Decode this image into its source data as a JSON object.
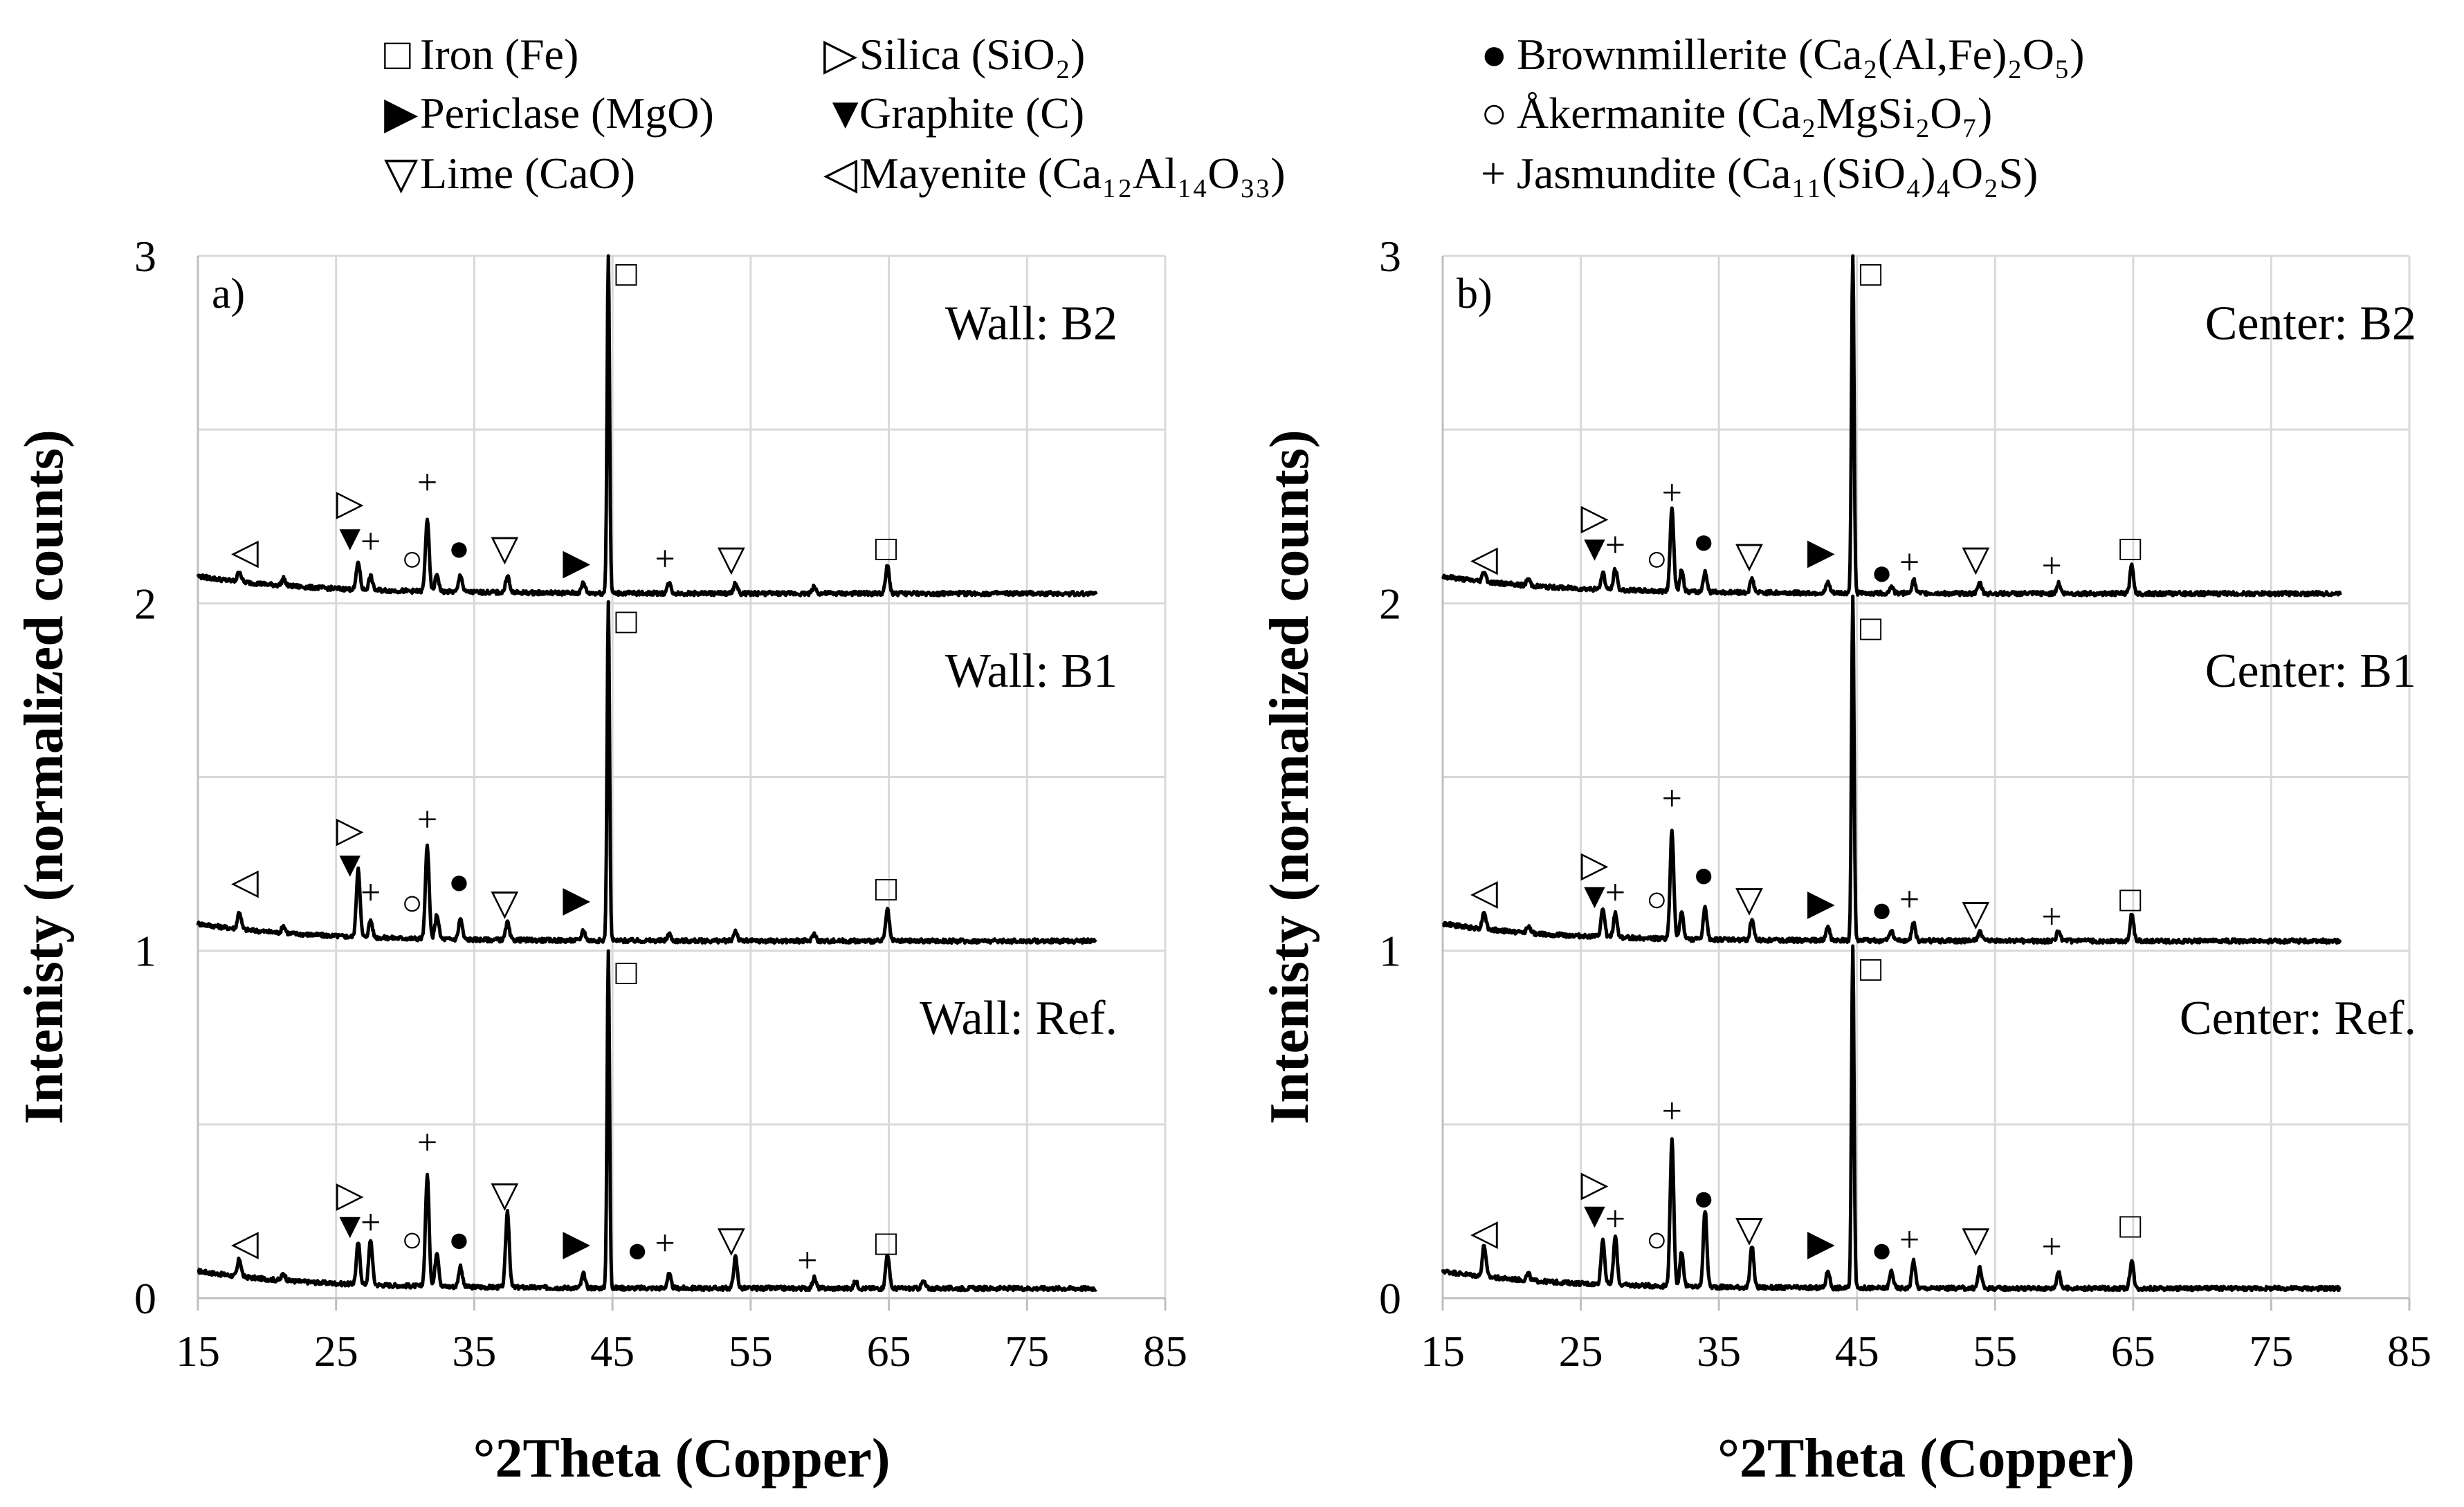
{
  "legend": {
    "items": [
      {
        "symbol": "□",
        "text": "Iron (Fe)"
      },
      {
        "symbol": "▶",
        "text": "Periclase (MgO)"
      },
      {
        "symbol": "▽",
        "text": "Lime (CaO)"
      },
      {
        "symbol": "▷",
        "text": "Silica (SiO₂)"
      },
      {
        "symbol": "▼",
        "text": "Graphite (C)"
      },
      {
        "symbol": "◁",
        "text": "Mayenite (Ca₁₂Al₁₄O₃₃)"
      },
      {
        "symbol": "●",
        "text": "Brownmillerite (Ca₂(Al,Fe)₂O₅)"
      },
      {
        "symbol": "○",
        "text": "Åkermanite (Ca₂MgSi₂O₇)"
      },
      {
        "symbol": "+",
        "text": "Jasmundite (Ca₁₁(SiO₄)₄O₂S)"
      }
    ]
  },
  "chart_data": [
    {
      "type": "line",
      "panel_label": "a)",
      "xlabel": "°2Theta (Copper)",
      "ylabel": "Intenisty (normalized counts)",
      "xlim": [
        15,
        85
      ],
      "ylim": [
        0,
        3
      ],
      "xticks": [
        15,
        25,
        35,
        45,
        55,
        65,
        75,
        85
      ],
      "yticks": [
        0,
        1,
        2,
        3
      ],
      "series": [
        {
          "name": "Wall: Ref.",
          "offset": 0,
          "peaks": [
            [
              18.0,
              0.05
            ],
            [
              21.2,
              0.02
            ],
            [
              26.6,
              0.12
            ],
            [
              27.5,
              0.13
            ],
            [
              31.6,
              0.32
            ],
            [
              32.3,
              0.1
            ],
            [
              34.0,
              0.06
            ],
            [
              37.4,
              0.22
            ],
            [
              42.9,
              0.04
            ],
            [
              44.7,
              0.97
            ],
            [
              49.1,
              0.04
            ],
            [
              53.9,
              0.09
            ],
            [
              59.6,
              0.03
            ],
            [
              62.6,
              0.02
            ],
            [
              64.9,
              0.1
            ],
            [
              67.5,
              0.02
            ]
          ],
          "markers": [
            {
              "symbol": "◁",
              "x": 18.4,
              "y": 0.16
            },
            {
              "symbol": "▷",
              "x": 26.0,
              "y": 0.3
            },
            {
              "symbol": "▼",
              "x": 26.0,
              "y": 0.21
            },
            {
              "symbol": "+",
              "x": 27.5,
              "y": 0.22
            },
            {
              "symbol": "○",
              "x": 30.5,
              "y": 0.17
            },
            {
              "symbol": "+",
              "x": 31.6,
              "y": 0.45
            },
            {
              "symbol": "●",
              "x": 33.9,
              "y": 0.17
            },
            {
              "symbol": "▽",
              "x": 37.2,
              "y": 0.3
            },
            {
              "symbol": "▶",
              "x": 42.4,
              "y": 0.16
            },
            {
              "symbol": "□",
              "x": 46.0,
              "y": 0.94
            },
            {
              "symbol": "●",
              "x": 46.8,
              "y": 0.14
            },
            {
              "symbol": "+",
              "x": 48.8,
              "y": 0.16
            },
            {
              "symbol": "▽",
              "x": 53.6,
              "y": 0.17
            },
            {
              "symbol": "+",
              "x": 59.1,
              "y": 0.11
            },
            {
              "symbol": "□",
              "x": 64.8,
              "y": 0.16
            }
          ]
        },
        {
          "name": "Wall: B1",
          "offset": 1,
          "peaks": [
            [
              18.0,
              0.05
            ],
            [
              21.2,
              0.02
            ],
            [
              26.6,
              0.2
            ],
            [
              27.5,
              0.05
            ],
            [
              31.6,
              0.27
            ],
            [
              32.3,
              0.07
            ],
            [
              34.0,
              0.06
            ],
            [
              37.4,
              0.05
            ],
            [
              42.9,
              0.03
            ],
            [
              44.7,
              0.98
            ],
            [
              49.1,
              0.02
            ],
            [
              53.9,
              0.03
            ],
            [
              59.6,
              0.02
            ],
            [
              64.9,
              0.09
            ]
          ],
          "markers": [
            {
              "symbol": "◁",
              "x": 18.4,
              "y": 1.2
            },
            {
              "symbol": "▷",
              "x": 26.0,
              "y": 1.35
            },
            {
              "symbol": "▼",
              "x": 26.0,
              "y": 1.25
            },
            {
              "symbol": "+",
              "x": 27.5,
              "y": 1.17
            },
            {
              "symbol": "○",
              "x": 30.5,
              "y": 1.14
            },
            {
              "symbol": "+",
              "x": 31.6,
              "y": 1.38
            },
            {
              "symbol": "●",
              "x": 33.9,
              "y": 1.2
            },
            {
              "symbol": "▽",
              "x": 37.2,
              "y": 1.14
            },
            {
              "symbol": "▶",
              "x": 42.4,
              "y": 1.15
            },
            {
              "symbol": "□",
              "x": 46.0,
              "y": 1.95
            },
            {
              "symbol": "□",
              "x": 64.8,
              "y": 1.18
            }
          ]
        },
        {
          "name": "Wall: B2",
          "offset": 2,
          "peaks": [
            [
              18.0,
              0.03
            ],
            [
              21.2,
              0.02
            ],
            [
              26.6,
              0.08
            ],
            [
              27.5,
              0.04
            ],
            [
              31.6,
              0.21
            ],
            [
              32.3,
              0.05
            ],
            [
              34.0,
              0.05
            ],
            [
              37.4,
              0.05
            ],
            [
              42.9,
              0.03
            ],
            [
              44.7,
              0.99
            ],
            [
              49.1,
              0.03
            ],
            [
              53.9,
              0.03
            ],
            [
              59.6,
              0.02
            ],
            [
              64.9,
              0.08
            ]
          ],
          "markers": [
            {
              "symbol": "◁",
              "x": 18.4,
              "y": 2.15
            },
            {
              "symbol": "▷",
              "x": 26.0,
              "y": 2.29
            },
            {
              "symbol": "▼",
              "x": 26.0,
              "y": 2.19
            },
            {
              "symbol": "+",
              "x": 27.5,
              "y": 2.18
            },
            {
              "symbol": "○",
              "x": 30.5,
              "y": 2.13
            },
            {
              "symbol": "+",
              "x": 31.6,
              "y": 2.35
            },
            {
              "symbol": "●",
              "x": 33.9,
              "y": 2.16
            },
            {
              "symbol": "▽",
              "x": 37.2,
              "y": 2.16
            },
            {
              "symbol": "▶",
              "x": 42.4,
              "y": 2.12
            },
            {
              "symbol": "□",
              "x": 46.0,
              "y": 2.95
            },
            {
              "symbol": "+",
              "x": 48.8,
              "y": 2.13
            },
            {
              "symbol": "▽",
              "x": 53.6,
              "y": 2.13
            },
            {
              "symbol": "□",
              "x": 64.8,
              "y": 2.16
            }
          ]
        }
      ]
    },
    {
      "type": "line",
      "panel_label": "b)",
      "xlabel": "°2Theta (Copper)",
      "ylabel": "Intenisty (normalized counts)",
      "xlim": [
        15,
        85
      ],
      "ylim": [
        0,
        3
      ],
      "xticks": [
        15,
        25,
        35,
        45,
        55,
        65,
        75,
        85
      ],
      "yticks": [
        0,
        1,
        2,
        3
      ],
      "series": [
        {
          "name": "Center: Ref.",
          "offset": 0,
          "peaks": [
            [
              18.0,
              0.09
            ],
            [
              21.2,
              0.02
            ],
            [
              26.6,
              0.13
            ],
            [
              27.5,
              0.14
            ],
            [
              31.6,
              0.42
            ],
            [
              32.3,
              0.1
            ],
            [
              34.0,
              0.22
            ],
            [
              37.4,
              0.12
            ],
            [
              42.9,
              0.05
            ],
            [
              44.7,
              0.99
            ],
            [
              47.5,
              0.05
            ],
            [
              49.1,
              0.08
            ],
            [
              53.9,
              0.06
            ],
            [
              59.6,
              0.05
            ],
            [
              64.9,
              0.08
            ]
          ],
          "markers": [
            {
              "symbol": "◁",
              "x": 18.0,
              "y": 0.19
            },
            {
              "symbol": "▷",
              "x": 26.0,
              "y": 0.33
            },
            {
              "symbol": "▼",
              "x": 26.0,
              "y": 0.24
            },
            {
              "symbol": "+",
              "x": 27.5,
              "y": 0.23
            },
            {
              "symbol": "○",
              "x": 30.5,
              "y": 0.17
            },
            {
              "symbol": "+",
              "x": 31.6,
              "y": 0.54
            },
            {
              "symbol": "●",
              "x": 33.9,
              "y": 0.29
            },
            {
              "symbol": "▽",
              "x": 37.2,
              "y": 0.2
            },
            {
              "symbol": "▶",
              "x": 42.4,
              "y": 0.16
            },
            {
              "symbol": "□",
              "x": 46.0,
              "y": 0.95
            },
            {
              "symbol": "●",
              "x": 46.8,
              "y": 0.14
            },
            {
              "symbol": "+",
              "x": 48.8,
              "y": 0.17
            },
            {
              "symbol": "▽",
              "x": 53.6,
              "y": 0.17
            },
            {
              "symbol": "+",
              "x": 59.1,
              "y": 0.15
            },
            {
              "symbol": "□",
              "x": 64.8,
              "y": 0.21
            }
          ]
        },
        {
          "name": "Center: B1",
          "offset": 1,
          "peaks": [
            [
              18.0,
              0.05
            ],
            [
              21.2,
              0.02
            ],
            [
              26.6,
              0.08
            ],
            [
              27.5,
              0.07
            ],
            [
              31.6,
              0.31
            ],
            [
              32.3,
              0.08
            ],
            [
              34.0,
              0.09
            ],
            [
              37.4,
              0.06
            ],
            [
              42.9,
              0.04
            ],
            [
              44.7,
              0.99
            ],
            [
              47.5,
              0.03
            ],
            [
              49.1,
              0.05
            ],
            [
              53.9,
              0.03
            ],
            [
              59.6,
              0.03
            ],
            [
              64.9,
              0.08
            ]
          ],
          "markers": [
            {
              "symbol": "◁",
              "x": 18.0,
              "y": 1.17
            },
            {
              "symbol": "▷",
              "x": 26.0,
              "y": 1.25
            },
            {
              "symbol": "▼",
              "x": 26.0,
              "y": 1.16
            },
            {
              "symbol": "+",
              "x": 27.5,
              "y": 1.17
            },
            {
              "symbol": "○",
              "x": 30.5,
              "y": 1.15
            },
            {
              "symbol": "+",
              "x": 31.6,
              "y": 1.44
            },
            {
              "symbol": "●",
              "x": 33.9,
              "y": 1.22
            },
            {
              "symbol": "▽",
              "x": 37.2,
              "y": 1.15
            },
            {
              "symbol": "▶",
              "x": 42.4,
              "y": 1.14
            },
            {
              "symbol": "□",
              "x": 46.0,
              "y": 1.93
            },
            {
              "symbol": "●",
              "x": 46.8,
              "y": 1.12
            },
            {
              "symbol": "+",
              "x": 48.8,
              "y": 1.15
            },
            {
              "symbol": "▽",
              "x": 53.6,
              "y": 1.11
            },
            {
              "symbol": "+",
              "x": 59.1,
              "y": 1.1
            },
            {
              "symbol": "□",
              "x": 64.8,
              "y": 1.15
            }
          ]
        },
        {
          "name": "Center: B2",
          "offset": 2,
          "peaks": [
            [
              18.0,
              0.03
            ],
            [
              21.2,
              0.02
            ],
            [
              26.6,
              0.05
            ],
            [
              27.5,
              0.06
            ],
            [
              31.6,
              0.24
            ],
            [
              32.3,
              0.06
            ],
            [
              34.0,
              0.06
            ],
            [
              37.4,
              0.04
            ],
            [
              42.9,
              0.03
            ],
            [
              44.7,
              0.99
            ],
            [
              47.5,
              0.02
            ],
            [
              49.1,
              0.04
            ],
            [
              53.9,
              0.03
            ],
            [
              59.6,
              0.03
            ],
            [
              64.9,
              0.08
            ]
          ],
          "markers": [
            {
              "symbol": "◁",
              "x": 18.0,
              "y": 2.13
            },
            {
              "symbol": "▷",
              "x": 26.0,
              "y": 2.25
            },
            {
              "symbol": "▼",
              "x": 26.0,
              "y": 2.16
            },
            {
              "symbol": "+",
              "x": 27.5,
              "y": 2.17
            },
            {
              "symbol": "○",
              "x": 30.5,
              "y": 2.13
            },
            {
              "symbol": "+",
              "x": 31.6,
              "y": 2.32
            },
            {
              "symbol": "●",
              "x": 33.9,
              "y": 2.18
            },
            {
              "symbol": "▽",
              "x": 37.2,
              "y": 2.14
            },
            {
              "symbol": "▶",
              "x": 42.4,
              "y": 2.15
            },
            {
              "symbol": "□",
              "x": 46.0,
              "y": 2.95
            },
            {
              "symbol": "●",
              "x": 46.8,
              "y": 2.09
            },
            {
              "symbol": "+",
              "x": 48.8,
              "y": 2.12
            },
            {
              "symbol": "▽",
              "x": 53.6,
              "y": 2.13
            },
            {
              "symbol": "+",
              "x": 59.1,
              "y": 2.11
            },
            {
              "symbol": "□",
              "x": 64.8,
              "y": 2.16
            }
          ]
        }
      ]
    }
  ]
}
